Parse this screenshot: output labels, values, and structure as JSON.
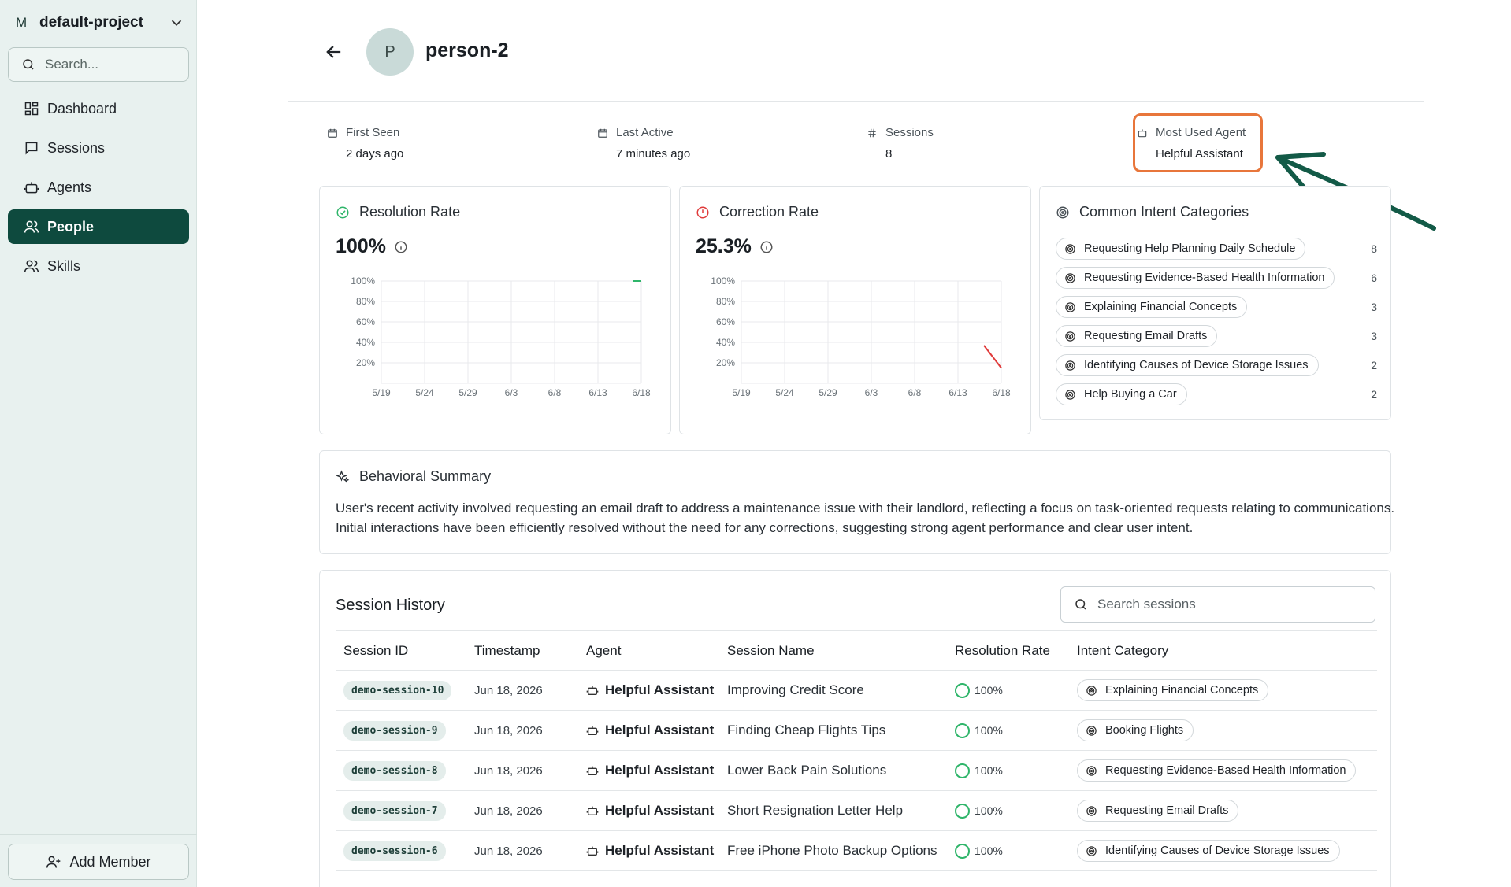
{
  "sidebar": {
    "project_initial": "M",
    "project_name": "default-project",
    "search_placeholder": "Search...",
    "items": [
      {
        "label": "Dashboard",
        "icon": "dashboard-icon"
      },
      {
        "label": "Sessions",
        "icon": "chat-icon"
      },
      {
        "label": "Agents",
        "icon": "bot-icon"
      },
      {
        "label": "People",
        "icon": "people-icon",
        "active": true
      },
      {
        "label": "Skills",
        "icon": "people-icon"
      }
    ],
    "add_member_label": "Add Member"
  },
  "header": {
    "avatar_initial": "P",
    "person_name": "person-2"
  },
  "meta": [
    {
      "label": "First Seen",
      "value": "2 days ago",
      "icon": "calendar-icon"
    },
    {
      "label": "Last Active",
      "value": "7 minutes ago",
      "icon": "calendar-icon"
    },
    {
      "label": "Sessions",
      "value": "8",
      "icon": "hash-icon"
    },
    {
      "label": "Most Used Agent",
      "value": "Helpful Assistant",
      "icon": "bot-icon"
    }
  ],
  "resolution": {
    "title": "Resolution Rate",
    "value": "100%",
    "accent": "#2fb56a"
  },
  "correction": {
    "title": "Correction Rate",
    "value": "25.3%",
    "accent": "#e03b3b"
  },
  "chart_data": [
    {
      "type": "line",
      "categories": [
        "5/19",
        "5/24",
        "5/29",
        "6/3",
        "6/8",
        "6/13",
        "6/18"
      ],
      "y_ticks": [
        "100%",
        "80%",
        "60%",
        "40%",
        "20%"
      ],
      "ylim": [
        0,
        100
      ],
      "grid": true,
      "series": [
        {
          "color": "#2fb56a",
          "points": [
            {
              "x": "6/17",
              "y": 100
            },
            {
              "x": "6/18",
              "y": 100
            }
          ]
        }
      ]
    },
    {
      "type": "line",
      "categories": [
        "5/19",
        "5/24",
        "5/29",
        "6/3",
        "6/8",
        "6/13",
        "6/18"
      ],
      "y_ticks": [
        "100%",
        "80%",
        "60%",
        "40%",
        "20%"
      ],
      "ylim": [
        0,
        100
      ],
      "grid": true,
      "series": [
        {
          "color": "#e03b3b",
          "points": [
            {
              "x": "6/16",
              "y": 37
            },
            {
              "x": "6/18",
              "y": 15
            }
          ]
        }
      ]
    }
  ],
  "intents": {
    "title": "Common Intent Categories",
    "items": [
      {
        "label": "Requesting Help Planning Daily Schedule",
        "count": "8"
      },
      {
        "label": "Requesting Evidence-Based Health Information",
        "count": "6"
      },
      {
        "label": "Explaining Financial Concepts",
        "count": "3"
      },
      {
        "label": "Requesting Email Drafts",
        "count": "3"
      },
      {
        "label": "Identifying Causes of Device Storage Issues",
        "count": "2"
      },
      {
        "label": "Help Buying a Car",
        "count": "2"
      }
    ]
  },
  "summary": {
    "title": "Behavioral Summary",
    "text": "User's recent activity involved requesting an email draft to address a maintenance issue with their landlord, reflecting a focus on task-oriented requests relating to communications. Initial interactions have been efficiently resolved without the need for any corrections, suggesting strong agent performance and clear user intent."
  },
  "sessions": {
    "title": "Session History",
    "search_placeholder": "Search sessions",
    "columns": [
      "Session ID",
      "Timestamp",
      "Agent",
      "Session Name",
      "Resolution Rate",
      "Intent Category"
    ],
    "rows": [
      {
        "id": "demo-session-10",
        "ts": "Jun 18, 2026",
        "agent": "Helpful Assistant",
        "name": "Improving Credit Score",
        "rate": "100%",
        "intent": "Explaining Financial Concepts"
      },
      {
        "id": "demo-session-9",
        "ts": "Jun 18, 2026",
        "agent": "Helpful Assistant",
        "name": "Finding Cheap Flights Tips",
        "rate": "100%",
        "intent": "Booking Flights"
      },
      {
        "id": "demo-session-8",
        "ts": "Jun 18, 2026",
        "agent": "Helpful Assistant",
        "name": "Lower Back Pain Solutions",
        "rate": "100%",
        "intent": "Requesting Evidence-Based Health Information"
      },
      {
        "id": "demo-session-7",
        "ts": "Jun 18, 2026",
        "agent": "Helpful Assistant",
        "name": "Short Resignation Letter Help",
        "rate": "100%",
        "intent": "Requesting Email Drafts"
      },
      {
        "id": "demo-session-6",
        "ts": "Jun 18, 2026",
        "agent": "Helpful Assistant",
        "name": "Free iPhone Photo Backup Options",
        "rate": "100%",
        "intent": "Identifying Causes of Device Storage Issues"
      }
    ]
  }
}
